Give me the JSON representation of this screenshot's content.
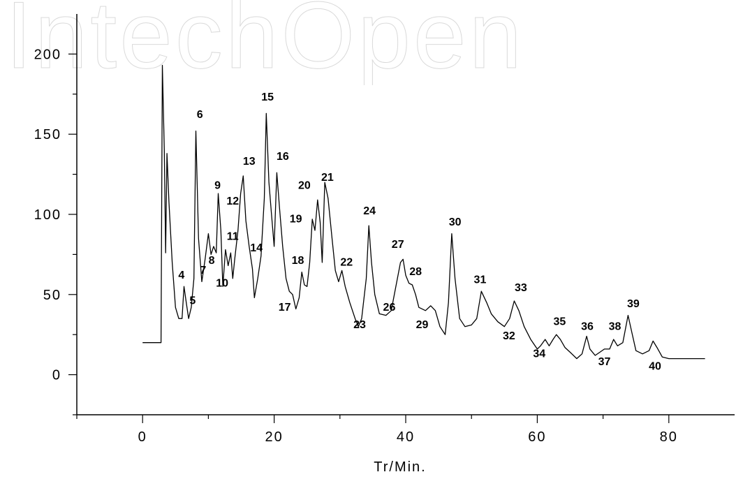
{
  "watermark": "IntechOpen",
  "chart_data": {
    "type": "line",
    "title": "",
    "xlabel": "Tr/Min.",
    "ylabel": "",
    "xlim": [
      -10,
      90
    ],
    "ylim": [
      -25,
      225
    ],
    "x_ticks": [
      0,
      20,
      40,
      60,
      80
    ],
    "y_ticks": [
      0,
      50,
      100,
      150,
      200
    ],
    "grid": false,
    "series": [
      {
        "points": [
          [
            0,
            20
          ],
          [
            1.5,
            20
          ],
          [
            2.8,
            20
          ],
          [
            3.0,
            193
          ],
          [
            3.3,
            140
          ],
          [
            3.5,
            76
          ],
          [
            3.7,
            138
          ],
          [
            4.0,
            108
          ],
          [
            4.5,
            70
          ],
          [
            5.0,
            42
          ],
          [
            5.5,
            35
          ],
          [
            6.0,
            35
          ],
          [
            6.3,
            55
          ],
          [
            6.6,
            46
          ],
          [
            7.0,
            35
          ],
          [
            7.4,
            42
          ],
          [
            7.8,
            60
          ],
          [
            8.1,
            152
          ],
          [
            8.5,
            85
          ],
          [
            9.0,
            58
          ],
          [
            9.5,
            72
          ],
          [
            10.0,
            88
          ],
          [
            10.4,
            75
          ],
          [
            10.8,
            80
          ],
          [
            11.2,
            76
          ],
          [
            11.5,
            113
          ],
          [
            11.9,
            90
          ],
          [
            12.2,
            55
          ],
          [
            12.6,
            78
          ],
          [
            13.0,
            68
          ],
          [
            13.4,
            76
          ],
          [
            13.7,
            60
          ],
          [
            14.0,
            72
          ],
          [
            14.5,
            90
          ],
          [
            14.9,
            113
          ],
          [
            15.3,
            124
          ],
          [
            15.7,
            96
          ],
          [
            16.2,
            80
          ],
          [
            16.7,
            66
          ],
          [
            17.0,
            48
          ],
          [
            17.5,
            60
          ],
          [
            18.0,
            74
          ],
          [
            18.5,
            110
          ],
          [
            18.8,
            163
          ],
          [
            19.2,
            120
          ],
          [
            19.6,
            100
          ],
          [
            20.0,
            80
          ],
          [
            20.4,
            126
          ],
          [
            20.8,
            105
          ],
          [
            21.3,
            80
          ],
          [
            21.8,
            60
          ],
          [
            22.3,
            52
          ],
          [
            22.8,
            50
          ],
          [
            23.3,
            41
          ],
          [
            23.8,
            48
          ],
          [
            24.2,
            64
          ],
          [
            24.6,
            56
          ],
          [
            25.0,
            55
          ],
          [
            25.4,
            70
          ],
          [
            25.8,
            97
          ],
          [
            26.2,
            90
          ],
          [
            26.6,
            109
          ],
          [
            27.0,
            95
          ],
          [
            27.3,
            70
          ],
          [
            27.7,
            120
          ],
          [
            28.2,
            110
          ],
          [
            28.8,
            85
          ],
          [
            29.3,
            65
          ],
          [
            29.8,
            58
          ],
          [
            30.3,
            65
          ],
          [
            30.8,
            55
          ],
          [
            31.5,
            45
          ],
          [
            32.3,
            35
          ],
          [
            32.8,
            30
          ],
          [
            33.3,
            35
          ],
          [
            34.0,
            60
          ],
          [
            34.4,
            93
          ],
          [
            34.8,
            70
          ],
          [
            35.3,
            50
          ],
          [
            36.0,
            38
          ],
          [
            37.0,
            37
          ],
          [
            37.8,
            40
          ],
          [
            38.5,
            55
          ],
          [
            39.2,
            70
          ],
          [
            39.6,
            72
          ],
          [
            40.0,
            62
          ],
          [
            40.5,
            57
          ],
          [
            41.0,
            56
          ],
          [
            41.5,
            50
          ],
          [
            42.0,
            42
          ],
          [
            43.0,
            40
          ],
          [
            43.8,
            43
          ],
          [
            44.5,
            40
          ],
          [
            45.2,
            30
          ],
          [
            46.0,
            25
          ],
          [
            46.5,
            45
          ],
          [
            47.0,
            88
          ],
          [
            47.5,
            60
          ],
          [
            48.2,
            35
          ],
          [
            49.0,
            30
          ],
          [
            50.0,
            31
          ],
          [
            50.8,
            35
          ],
          [
            51.5,
            52
          ],
          [
            52.3,
            45
          ],
          [
            53.0,
            38
          ],
          [
            54.0,
            33
          ],
          [
            55.0,
            30
          ],
          [
            55.8,
            35
          ],
          [
            56.5,
            46
          ],
          [
            57.2,
            40
          ],
          [
            58.0,
            30
          ],
          [
            59.0,
            22
          ],
          [
            60.0,
            16
          ],
          [
            60.5,
            18
          ],
          [
            61.2,
            22
          ],
          [
            61.8,
            18
          ],
          [
            62.4,
            22
          ],
          [
            62.9,
            25
          ],
          [
            63.5,
            22
          ],
          [
            64.2,
            17
          ],
          [
            65.0,
            14
          ],
          [
            66.0,
            10
          ],
          [
            66.8,
            13
          ],
          [
            67.5,
            24
          ],
          [
            68.0,
            16
          ],
          [
            68.8,
            12
          ],
          [
            69.5,
            14
          ],
          [
            70.2,
            16
          ],
          [
            71.0,
            16
          ],
          [
            71.6,
            22
          ],
          [
            72.2,
            18
          ],
          [
            73.0,
            20
          ],
          [
            73.8,
            37
          ],
          [
            74.4,
            26
          ],
          [
            75.0,
            15
          ],
          [
            76.0,
            13
          ],
          [
            77.0,
            15
          ],
          [
            77.6,
            21
          ],
          [
            78.2,
            17
          ],
          [
            79.0,
            11
          ],
          [
            80.0,
            10
          ],
          [
            85.5,
            10
          ]
        ]
      }
    ],
    "annotations": [
      {
        "text": "4",
        "x": 5.9,
        "y": 60
      },
      {
        "text": "5",
        "x": 7.6,
        "y": 44
      },
      {
        "text": "6",
        "x": 8.7,
        "y": 160
      },
      {
        "text": "7",
        "x": 9.2,
        "y": 63
      },
      {
        "text": "8",
        "x": 10.5,
        "y": 69
      },
      {
        "text": "9",
        "x": 11.4,
        "y": 116
      },
      {
        "text": "10",
        "x": 12.1,
        "y": 55
      },
      {
        "text": "11",
        "x": 13.7,
        "y": 84
      },
      {
        "text": "12",
        "x": 13.7,
        "y": 106
      },
      {
        "text": "13",
        "x": 16.2,
        "y": 131
      },
      {
        "text": "14",
        "x": 17.3,
        "y": 77
      },
      {
        "text": "15",
        "x": 19.0,
        "y": 171
      },
      {
        "text": "16",
        "x": 21.3,
        "y": 134
      },
      {
        "text": "17",
        "x": 21.6,
        "y": 40
      },
      {
        "text": "18",
        "x": 23.6,
        "y": 69
      },
      {
        "text": "19",
        "x": 23.3,
        "y": 95
      },
      {
        "text": "20",
        "x": 24.6,
        "y": 116
      },
      {
        "text": "21",
        "x": 28.1,
        "y": 121
      },
      {
        "text": "22",
        "x": 31.0,
        "y": 68
      },
      {
        "text": "23",
        "x": 33.0,
        "y": 29
      },
      {
        "text": "24",
        "x": 34.5,
        "y": 100
      },
      {
        "text": "26",
        "x": 37.5,
        "y": 40
      },
      {
        "text": "27",
        "x": 38.8,
        "y": 79
      },
      {
        "text": "28",
        "x": 41.5,
        "y": 62
      },
      {
        "text": "29",
        "x": 42.5,
        "y": 29
      },
      {
        "text": "30",
        "x": 47.5,
        "y": 93
      },
      {
        "text": "31",
        "x": 51.3,
        "y": 57
      },
      {
        "text": "32",
        "x": 55.7,
        "y": 22
      },
      {
        "text": "33",
        "x": 57.5,
        "y": 52
      },
      {
        "text": "34",
        "x": 60.3,
        "y": 11
      },
      {
        "text": "35",
        "x": 63.4,
        "y": 31
      },
      {
        "text": "36",
        "x": 67.6,
        "y": 28
      },
      {
        "text": "37",
        "x": 70.2,
        "y": 6
      },
      {
        "text": "38",
        "x": 71.8,
        "y": 28
      },
      {
        "text": "39",
        "x": 74.6,
        "y": 42
      },
      {
        "text": "40",
        "x": 77.9,
        "y": 3
      }
    ]
  }
}
